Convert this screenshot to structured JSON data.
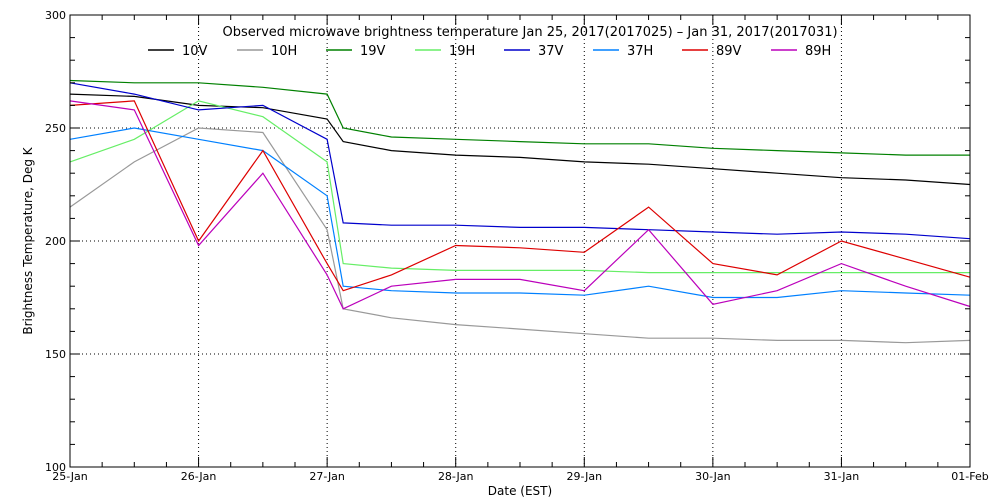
{
  "chart_data": {
    "type": "line",
    "title": "Observed microwave brightness temperature Jan 25, 2017(2017025) – Jan 31, 2017(2017031)",
    "xlabel": "Date (EST)",
    "ylabel": "Brightness Temperature, Deg K",
    "xlim": [
      "2017-01-25",
      "2017-02-01"
    ],
    "ylim": [
      100,
      300
    ],
    "x_tick_labels": [
      "25-Jan",
      "26-Jan",
      "27-Jan",
      "28-Jan",
      "29-Jan",
      "30-Jan",
      "31-Jan",
      "01-Feb"
    ],
    "y_tick_labels": [
      "100",
      "150",
      "200",
      "250",
      "300"
    ],
    "grid": "dotted",
    "legend_position": "top",
    "x": [
      "2017-01-25",
      "2017-01-25 12:00",
      "2017-01-26",
      "2017-01-26 12:00",
      "2017-01-27",
      "2017-01-27 03:00",
      "2017-01-27 12:00",
      "2017-01-28",
      "2017-01-28 12:00",
      "2017-01-29",
      "2017-01-29 12:00",
      "2017-01-30",
      "2017-01-30 12:00",
      "2017-01-31",
      "2017-01-31 12:00",
      "2017-02-01"
    ],
    "series": [
      {
        "name": "10V",
        "color": "#000000",
        "values": [
          265,
          264,
          260,
          259,
          254,
          244,
          240,
          238,
          237,
          235,
          234,
          232,
          230,
          228,
          227,
          225
        ]
      },
      {
        "name": "10H",
        "color": "#999999",
        "values": [
          215,
          235,
          250,
          248,
          205,
          170,
          166,
          163,
          161,
          159,
          157,
          157,
          156,
          156,
          155,
          156
        ]
      },
      {
        "name": "19V",
        "color": "#008000",
        "values": [
          271,
          270,
          270,
          268,
          265,
          250,
          246,
          245,
          244,
          243,
          243,
          241,
          240,
          239,
          238,
          238
        ]
      },
      {
        "name": "19H",
        "color": "#66ee66",
        "values": [
          235,
          245,
          262,
          255,
          235,
          190,
          188,
          187,
          187,
          187,
          186,
          186,
          186,
          186,
          186,
          186
        ]
      },
      {
        "name": "37V",
        "color": "#0000cc",
        "values": [
          270,
          265,
          258,
          260,
          245,
          208,
          207,
          207,
          206,
          206,
          205,
          204,
          203,
          204,
          203,
          201
        ]
      },
      {
        "name": "37H",
        "color": "#0080ff",
        "values": [
          245,
          250,
          245,
          240,
          220,
          180,
          178,
          177,
          177,
          176,
          180,
          175,
          175,
          178,
          177,
          176
        ]
      },
      {
        "name": "89V",
        "color": "#dd0000",
        "values": [
          260,
          262,
          200,
          240,
          190,
          178,
          185,
          198,
          197,
          195,
          215,
          190,
          185,
          200,
          192,
          184
        ]
      },
      {
        "name": "89H",
        "color": "#bb00bb",
        "values": [
          262,
          258,
          198,
          230,
          185,
          170,
          180,
          183,
          183,
          178,
          205,
          172,
          178,
          190,
          180,
          171
        ]
      }
    ]
  }
}
